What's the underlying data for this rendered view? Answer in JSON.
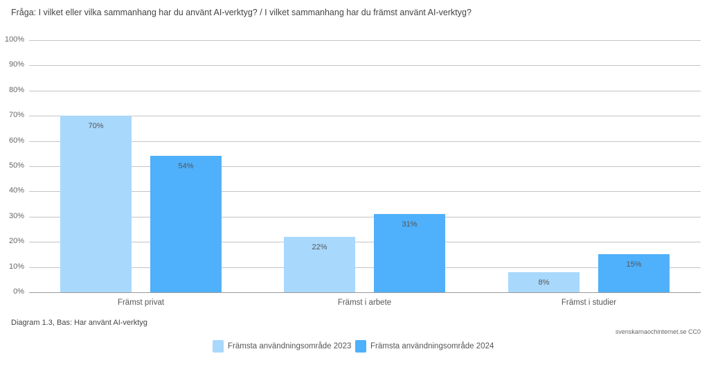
{
  "title": "Fråga: I vilket eller vilka sammanhang har du använt AI-verktyg? / I vilket sammanhang har du främst använt AI-verktyg?",
  "footnote": "Diagram 1.3, Bas: Har använt AI-verktyg",
  "credit": "svenskarnaochinternet.se CC0",
  "colors": {
    "series_2023": "#a8d8fc",
    "series_2024": "#4fb0fb",
    "grid": "#c4c4c4"
  },
  "y_ticks": [
    "0%",
    "10%",
    "20%",
    "30%",
    "40%",
    "50%",
    "60%",
    "70%",
    "80%",
    "90%",
    "100%"
  ],
  "legend": [
    {
      "label": "Främsta användningsområde 2023",
      "color": "#a8d8fc"
    },
    {
      "label": "Främsta användningsområde 2024",
      "color": "#4fb0fb"
    }
  ],
  "chart_data": {
    "type": "bar",
    "title": "Fråga: I vilket eller vilka sammanhang har du använt AI-verktyg? / I vilket sammanhang har du främst använt AI-verktyg?",
    "categories": [
      "Främst privat",
      "Främst i arbete",
      "Främst i studier"
    ],
    "series": [
      {
        "name": "Främsta användningsområde 2023",
        "values": [
          70,
          22,
          8
        ],
        "labels": [
          "70%",
          "22%",
          "8%"
        ],
        "color": "#a8d8fc"
      },
      {
        "name": "Främsta användningsområde 2024",
        "values": [
          54,
          31,
          15
        ],
        "labels": [
          "54%",
          "31%",
          "15%"
        ],
        "color": "#4fb0fb"
      }
    ],
    "xlabel": "",
    "ylabel": "",
    "ylim": [
      0,
      100
    ],
    "y_tick_step": 10,
    "y_format": "percent",
    "grid": true,
    "legend_position": "bottom",
    "footnote": "Diagram 1.3, Bas: Har använt AI-verktyg",
    "source": "svenskarnaochinternet.se CC0"
  }
}
